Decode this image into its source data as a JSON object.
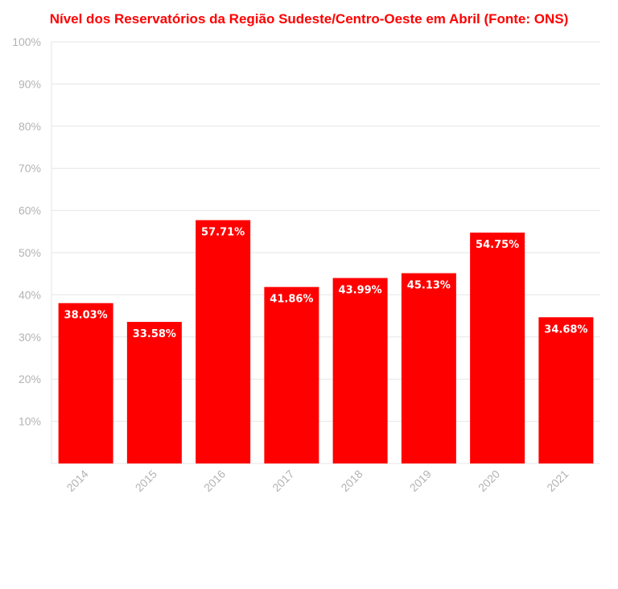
{
  "colors": {
    "accent": "#ff0000",
    "bar": "#ff0000",
    "grid": "#e6e6e6",
    "tick_text": "#b3b3b3",
    "data_label": "#ffffff"
  },
  "chart_data": {
    "type": "bar",
    "title": "Nível dos Reservatórios da Região Sudeste/Centro-Oeste em Abril (Fonte: ONS)",
    "xlabel": "",
    "ylabel": "",
    "categories": [
      "2014",
      "2015",
      "2016",
      "2017",
      "2018",
      "2019",
      "2020",
      "2021"
    ],
    "values": [
      38.03,
      33.58,
      57.71,
      41.86,
      43.99,
      45.13,
      54.75,
      34.68
    ],
    "data_labels": [
      "38.03%",
      "33.58%",
      "57.71%",
      "41.86%",
      "43.99%",
      "45.13%",
      "54.75%",
      "34.68%"
    ],
    "ylim": [
      0,
      100
    ],
    "yticks": [
      10,
      20,
      30,
      40,
      50,
      60,
      70,
      80,
      90,
      100
    ],
    "ytick_labels": [
      "10%",
      "20%",
      "30%",
      "40%",
      "50%",
      "60%",
      "70%",
      "80%",
      "90%",
      "100%"
    ],
    "grid": true,
    "legend": "none"
  }
}
